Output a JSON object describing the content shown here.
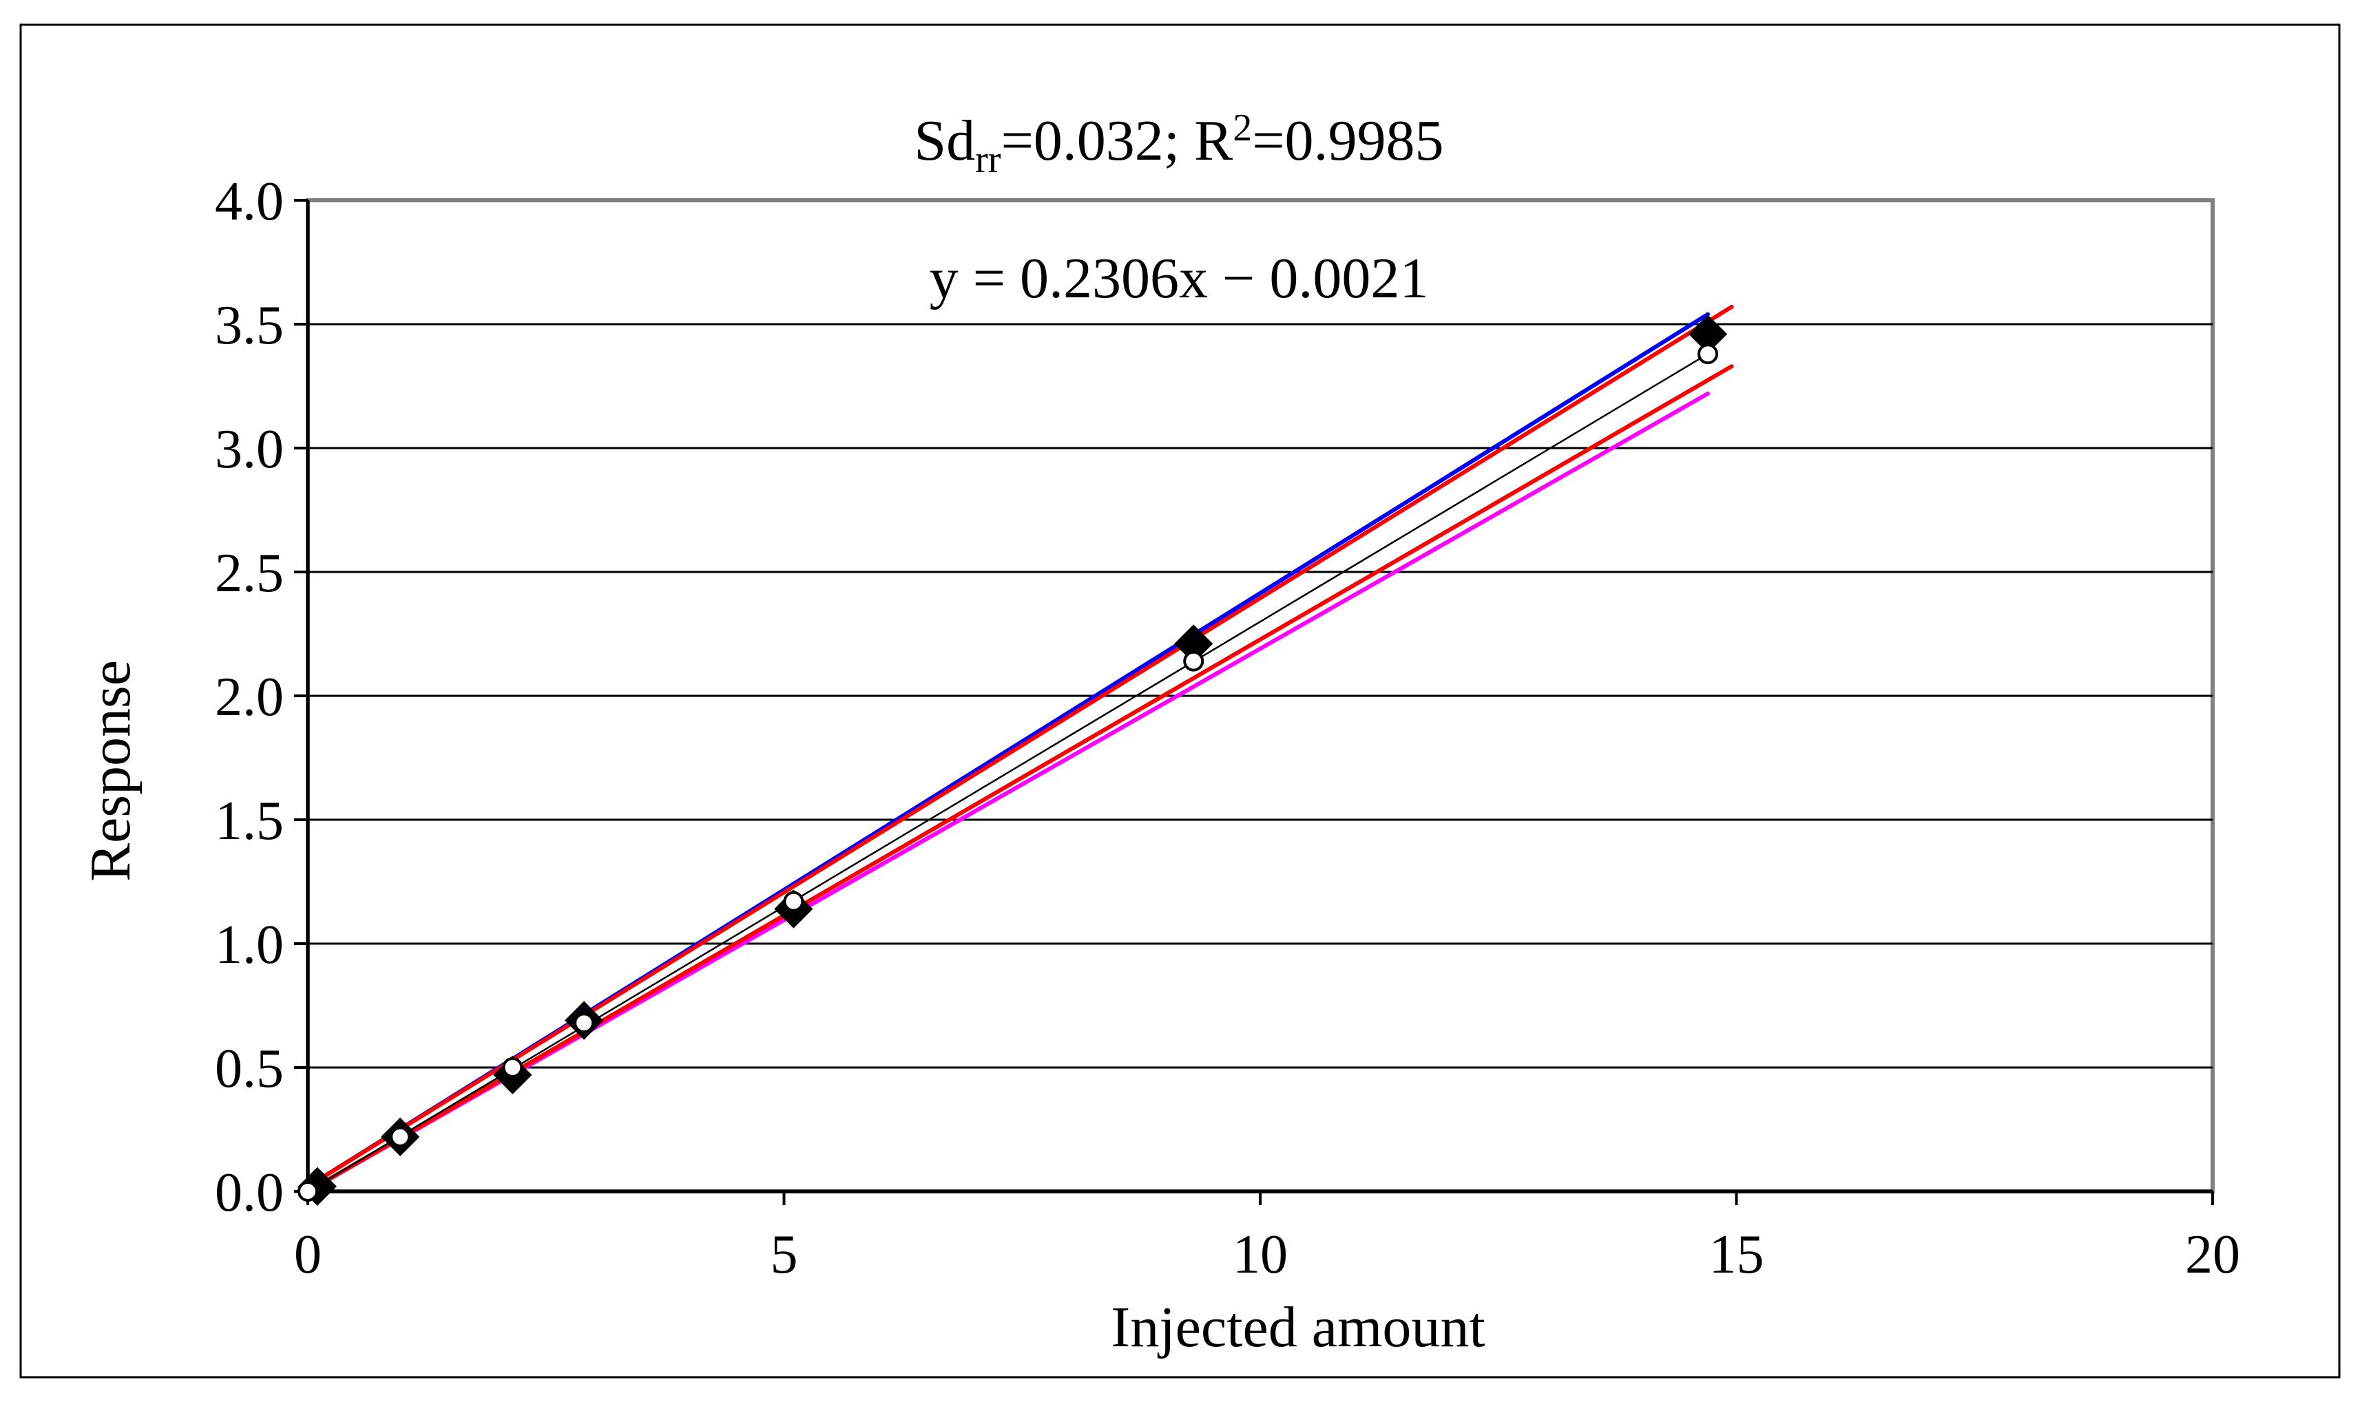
{
  "chart_data": {
    "type": "scatter",
    "title_parts": {
      "sd": "Sd",
      "sd_sub": "rr",
      "sd_val": "=0.032; R",
      "r_sup": "2",
      "r_val": "=0.9985"
    },
    "equation": "y = 0.2306x − 0.0021",
    "xlabel": "Injected amount",
    "ylabel": "Response",
    "xlim": [
      0,
      20
    ],
    "ylim": [
      0,
      4
    ],
    "x_ticks": [
      "0",
      "5",
      "10",
      "15",
      "20"
    ],
    "y_ticks": [
      "0.0",
      "0.5",
      "1.0",
      "1.5",
      "2.0",
      "2.5",
      "3.0",
      "3.5",
      "4.0"
    ],
    "grid": "horizontal",
    "lines": [
      {
        "color": "#0000ff",
        "x": [
          0,
          14.7
        ],
        "y": [
          0.02,
          3.54
        ]
      },
      {
        "color": "#ff00ff",
        "x": [
          0,
          14.7
        ],
        "y": [
          0.0,
          3.22
        ]
      },
      {
        "color": "#ff0000",
        "x": [
          0,
          14.95
        ],
        "y": [
          0.02,
          3.57
        ]
      },
      {
        "color": "#ff0000",
        "x": [
          0,
          14.95
        ],
        "y": [
          0.0,
          3.33
        ]
      },
      {
        "color": "#000000",
        "x": [
          0,
          14.7
        ],
        "y": [
          0.0,
          3.38
        ]
      }
    ],
    "series": [
      {
        "marker": "diamond-filled",
        "x": [
          0.1,
          0.97,
          2.15,
          2.9,
          5.1,
          9.3,
          14.7
        ],
        "y": [
          0.02,
          0.22,
          0.47,
          0.69,
          1.14,
          2.21,
          3.46
        ]
      },
      {
        "marker": "circle-open",
        "x": [
          0.0,
          0.97,
          2.15,
          2.9,
          5.1,
          9.3,
          14.7
        ],
        "y": [
          0.0,
          0.22,
          0.5,
          0.68,
          1.17,
          2.14,
          3.38
        ]
      }
    ]
  }
}
